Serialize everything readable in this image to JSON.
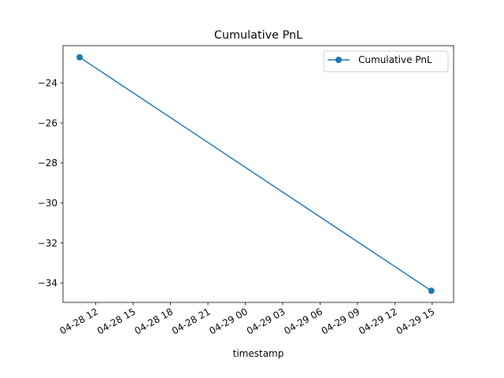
{
  "chart_data": {
    "type": "line",
    "title": "Cumulative PnL",
    "xlabel": "timestamp",
    "ylabel": "",
    "x_tick_labels": [
      "04-28 12",
      "04-28 15",
      "04-28 18",
      "04-28 21",
      "04-29 00",
      "04-29 03",
      "04-29 06",
      "04-29 09",
      "04-29 12",
      "04-29 15"
    ],
    "y_tick_labels": [
      "−24",
      "−26",
      "−28",
      "−30",
      "−32",
      "−34"
    ],
    "y_ticks": [
      -24,
      -26,
      -28,
      -30,
      -32,
      -34
    ],
    "ylim": [
      -34.97,
      -22.14
    ],
    "xlim": [
      "2024-04-28 09:22",
      "2024-04-29 16:43"
    ],
    "series": [
      {
        "name": "Cumulative PnL",
        "color": "#1f77b4",
        "marker": "circle",
        "x": [
          "2024-04-28 10:42",
          "2024-04-29 14:56"
        ],
        "y": [
          -22.72,
          -34.39
        ]
      }
    ],
    "legend": {
      "placement": "top-right",
      "entries": [
        "Cumulative PnL"
      ]
    },
    "grid": false
  }
}
